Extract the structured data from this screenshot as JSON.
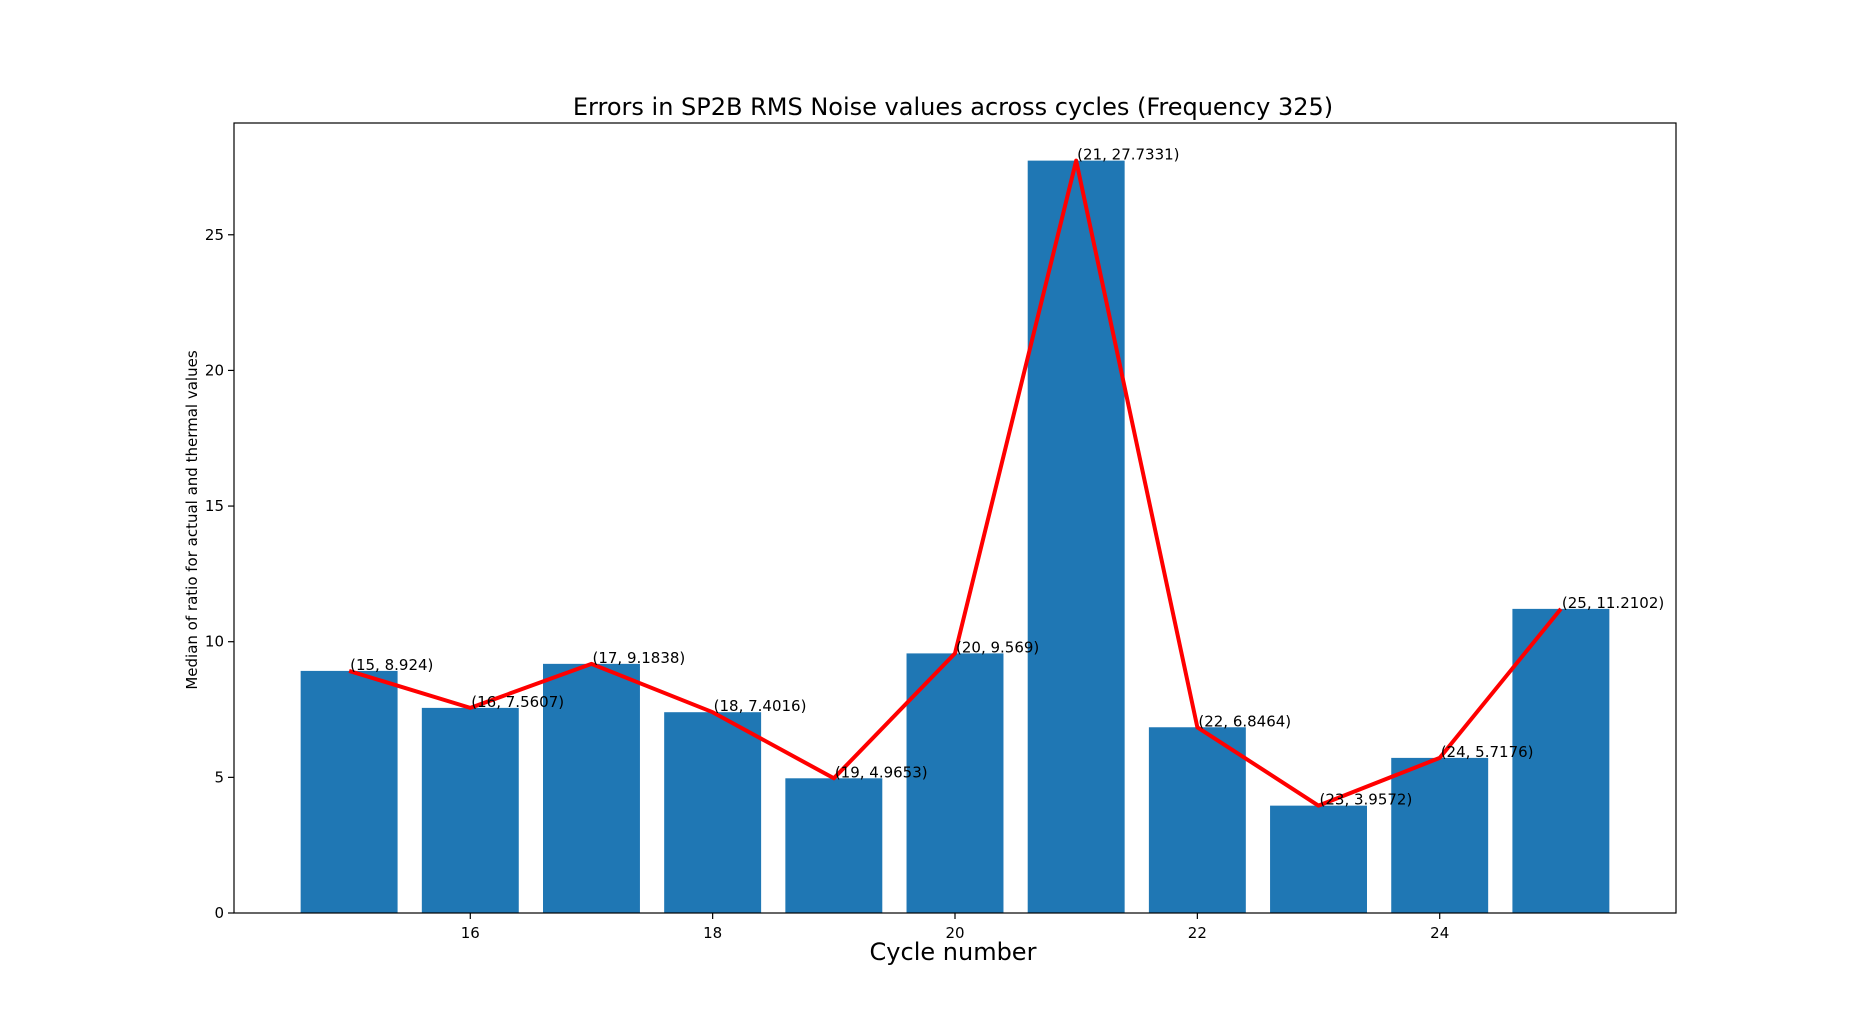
{
  "chart_data": {
    "type": "bar",
    "title": "Errors in SP2B RMS Noise values across cycles (Frequency 325)",
    "xlabel": "Cycle number",
    "ylabel": "Median of ratio for actual and thermal values",
    "x": [
      15,
      16,
      17,
      18,
      19,
      20,
      21,
      22,
      23,
      24,
      25
    ],
    "values": [
      8.924,
      7.5607,
      9.1838,
      7.4016,
      4.9653,
      9.569,
      27.7331,
      6.8464,
      3.9572,
      5.7176,
      11.2102
    ],
    "xlim": [
      14.05,
      25.95
    ],
    "ylim": [
      0,
      29.12
    ],
    "xticks": [
      16,
      18,
      20,
      22,
      24
    ],
    "yticks": [
      0,
      5,
      10,
      15,
      20,
      25
    ],
    "bar_color": "#1f77b4",
    "line_color": "#ff0000",
    "data_labels": [
      "(15, 8.924)",
      "(16, 7.5607)",
      "(17, 9.1838)",
      "(18, 7.4016)",
      "(19, 4.9653)",
      "(20, 9.569)",
      "(21, 27.7331)",
      "(22, 6.8464)",
      "(23, 3.9572)",
      "(24, 5.7176)",
      "(25, 11.2102)"
    ],
    "grid": false,
    "legend": "none"
  }
}
